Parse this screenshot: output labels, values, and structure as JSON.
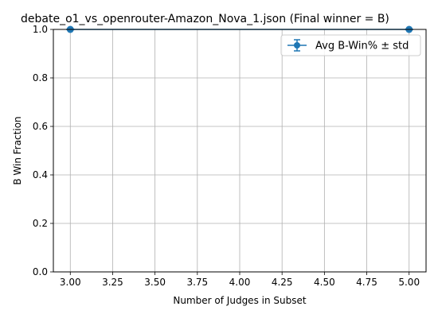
{
  "chart_data": {
    "type": "line",
    "title": "debate_o1_vs_openrouter-Amazon_Nova_1.json (Final winner = B)",
    "xlabel": "Number of Judges in Subset",
    "ylabel": "B Win Fraction",
    "xlim": [
      2.9,
      5.1
    ],
    "ylim": [
      0.0,
      1.0
    ],
    "x_ticks": [
      3.0,
      3.25,
      3.5,
      3.75,
      4.0,
      4.25,
      4.5,
      4.75,
      5.0
    ],
    "x_tick_labels": [
      "3.00",
      "3.25",
      "3.50",
      "3.75",
      "4.00",
      "4.25",
      "4.50",
      "4.75",
      "5.00"
    ],
    "y_ticks": [
      0.0,
      0.2,
      0.4,
      0.6,
      0.8,
      1.0
    ],
    "y_tick_labels": [
      "0.0",
      "0.2",
      "0.4",
      "0.6",
      "0.8",
      "1.0"
    ],
    "grid": true,
    "legend_position": "upper-right",
    "series": [
      {
        "name": "Avg B-Win% ± std",
        "color": "#1f77b4",
        "marker": "circle",
        "x": [
          3,
          5
        ],
        "values": [
          1.0,
          1.0
        ],
        "std": [
          0.0,
          0.0
        ]
      }
    ]
  }
}
